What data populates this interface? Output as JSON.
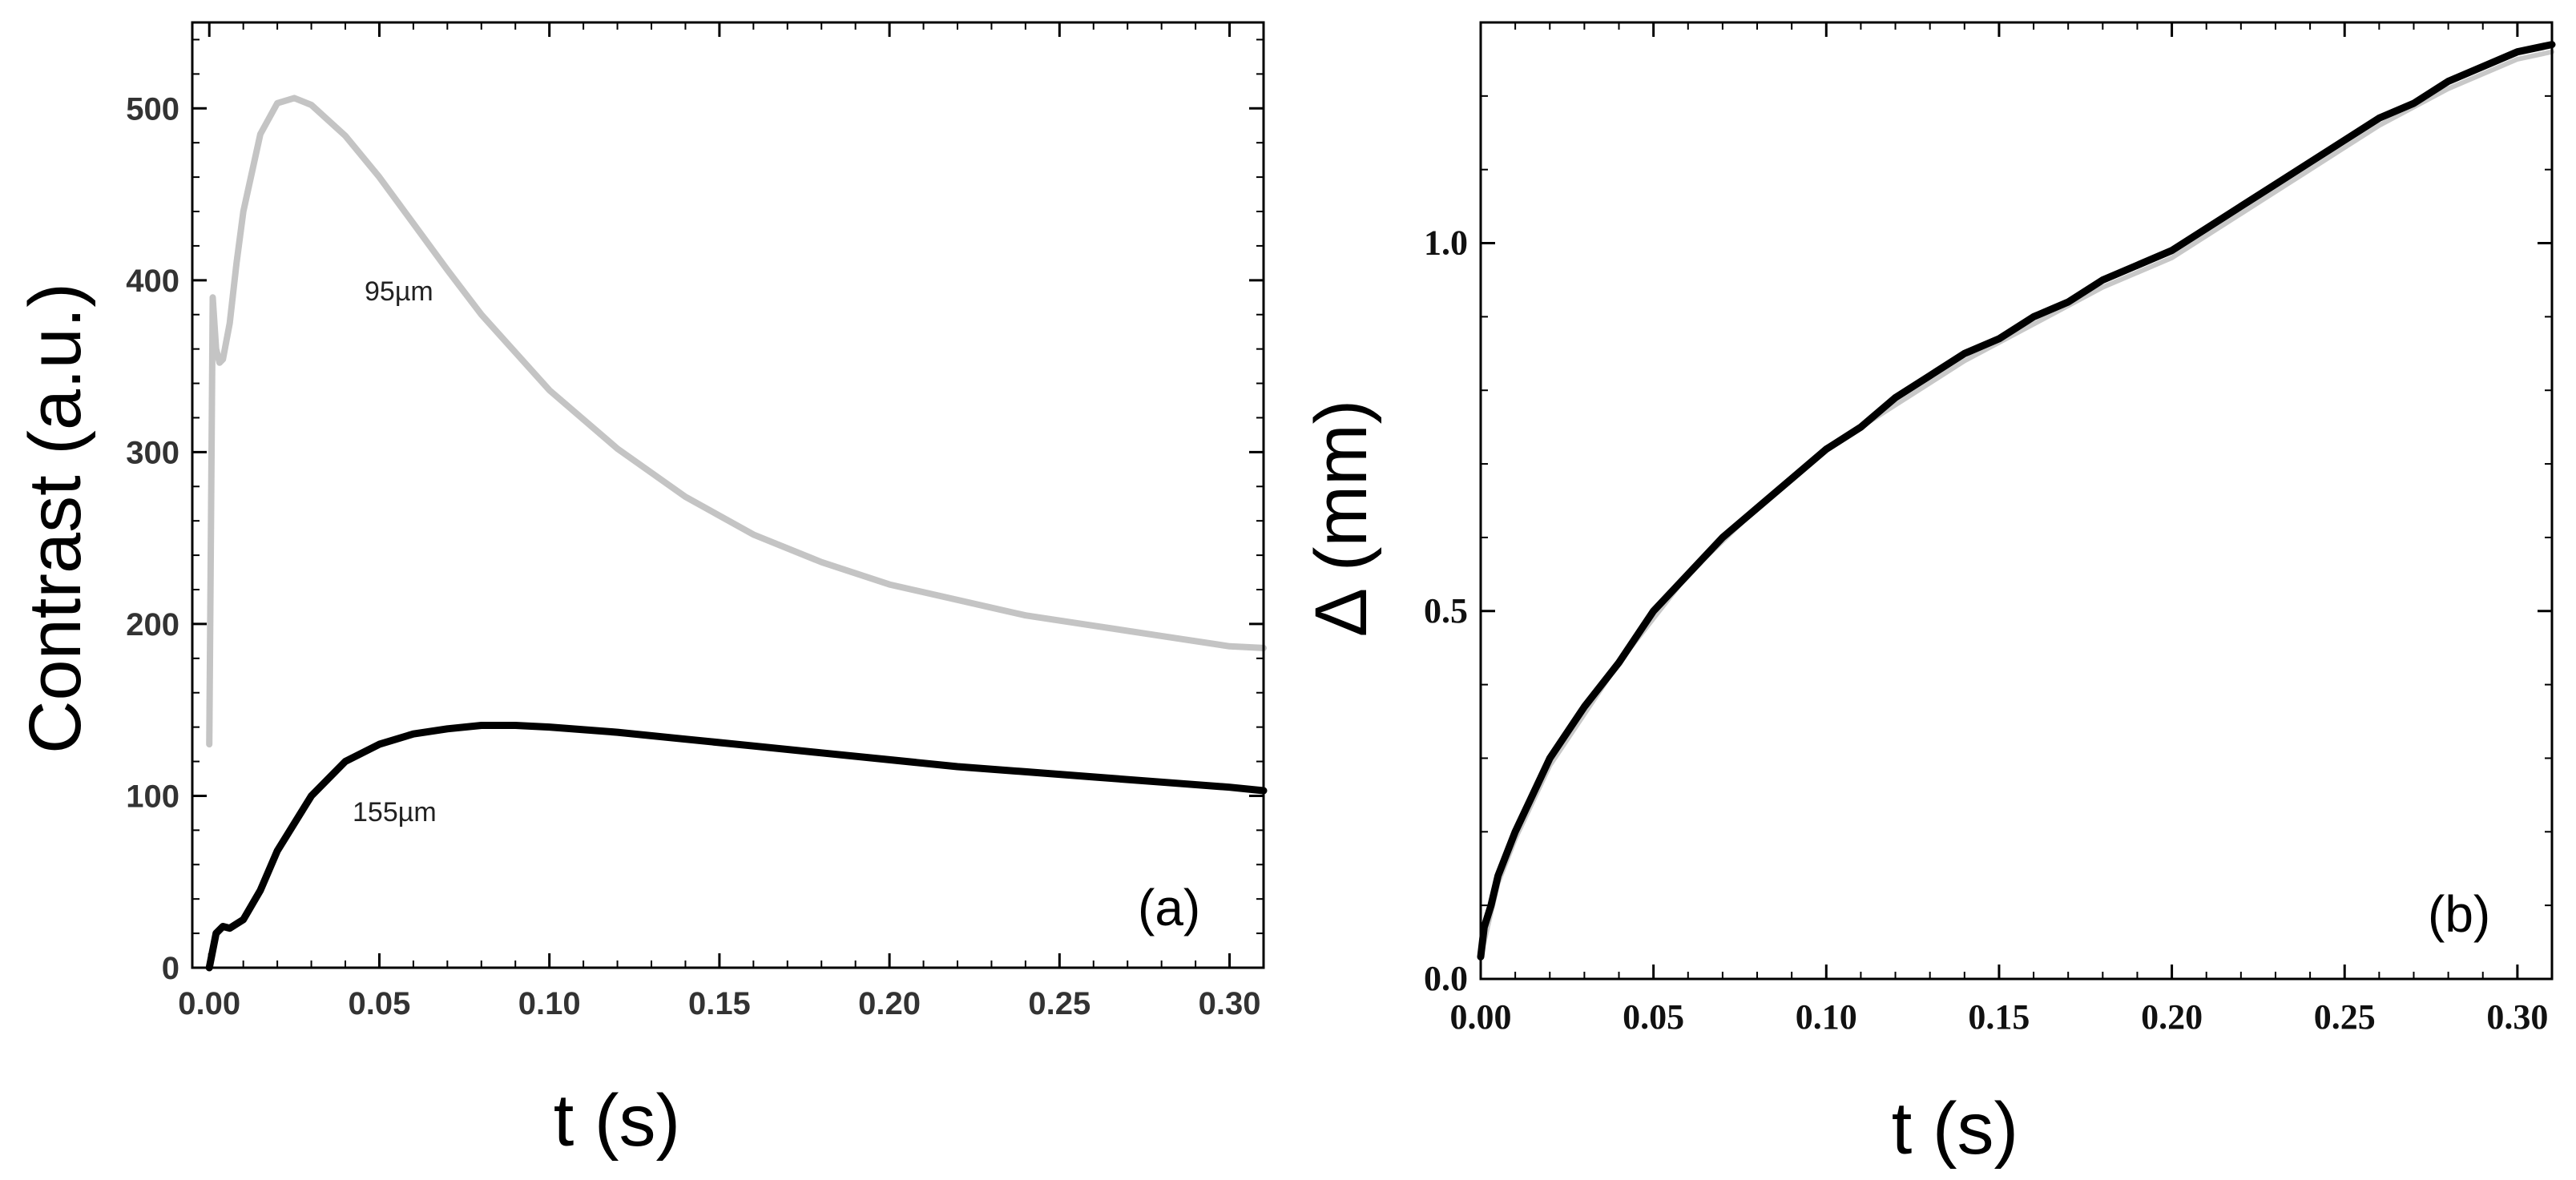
{
  "chart_data": [
    {
      "panel": "(a)",
      "type": "line",
      "xlabel": "t (s)",
      "ylabel": "Contrast (a.u.)",
      "xlim": [
        -0.005,
        0.31
      ],
      "ylim": [
        0,
        550
      ],
      "xticks": [
        "0.00",
        "0.05",
        "0.10",
        "0.15",
        "0.20",
        "0.25",
        "0.30"
      ],
      "yticks": [
        "0",
        "100",
        "200",
        "300",
        "400",
        "500"
      ],
      "xtick_values": [
        0,
        0.05,
        0.1,
        0.15,
        0.2,
        0.25,
        0.3
      ],
      "ytick_values": [
        0,
        100,
        200,
        300,
        400,
        500
      ],
      "series": [
        {
          "name": "95µm",
          "color": "#c4c4c4",
          "x": [
            0,
            0.001,
            0.002,
            0.003,
            0.004,
            0.006,
            0.008,
            0.01,
            0.015,
            0.02,
            0.025,
            0.03,
            0.04,
            0.05,
            0.06,
            0.07,
            0.08,
            0.1,
            0.12,
            0.14,
            0.16,
            0.18,
            0.2,
            0.22,
            0.24,
            0.26,
            0.28,
            0.3,
            0.31
          ],
          "y": [
            130,
            390,
            360,
            352,
            354,
            375,
            410,
            440,
            485,
            503,
            506,
            502,
            484,
            460,
            433,
            406,
            380,
            336,
            302,
            274,
            252,
            236,
            223,
            214,
            205,
            199,
            193,
            187,
            186
          ]
        },
        {
          "name": "155µm",
          "color": "#000000",
          "x": [
            0,
            0.002,
            0.004,
            0.006,
            0.01,
            0.015,
            0.02,
            0.03,
            0.04,
            0.05,
            0.06,
            0.07,
            0.08,
            0.09,
            0.1,
            0.12,
            0.14,
            0.16,
            0.18,
            0.2,
            0.22,
            0.24,
            0.26,
            0.28,
            0.3,
            0.31
          ],
          "y": [
            0,
            20,
            24,
            23,
            28,
            45,
            68,
            100,
            120,
            130,
            136,
            139,
            141,
            141,
            140,
            137,
            133,
            129,
            125,
            121,
            117,
            114,
            111,
            108,
            105,
            103
          ]
        }
      ],
      "annotations": [
        {
          "text": "95µm",
          "x": 0.06,
          "y": 390
        },
        {
          "text": "155µm",
          "x": 0.06,
          "y": 88
        }
      ]
    },
    {
      "panel": "(b)",
      "type": "line",
      "xlabel": "t (s)",
      "ylabel": "Δ (mm)",
      "xlim": [
        0,
        0.31
      ],
      "ylim": [
        0,
        1.3
      ],
      "xticks": [
        "0.00",
        "0.05",
        "0.10",
        "0.15",
        "0.20",
        "0.25",
        "0.30"
      ],
      "yticks": [
        "0.0",
        "0.5",
        "1.0"
      ],
      "xtick_values": [
        0,
        0.05,
        0.1,
        0.15,
        0.2,
        0.25,
        0.3
      ],
      "ytick_values": [
        0,
        0.5,
        1.0
      ],
      "series": [
        {
          "name": "Δ",
          "color": "#000000",
          "x": [
            0,
            0.001,
            0.003,
            0.005,
            0.01,
            0.015,
            0.02,
            0.03,
            0.04,
            0.05,
            0.06,
            0.07,
            0.08,
            0.09,
            0.1,
            0.11,
            0.12,
            0.13,
            0.14,
            0.15,
            0.16,
            0.17,
            0.18,
            0.19,
            0.2,
            0.21,
            0.22,
            0.23,
            0.24,
            0.25,
            0.26,
            0.27,
            0.28,
            0.29,
            0.3,
            0.31
          ],
          "y": [
            0.03,
            0.07,
            0.1,
            0.14,
            0.2,
            0.25,
            0.3,
            0.37,
            0.43,
            0.5,
            0.55,
            0.6,
            0.64,
            0.68,
            0.72,
            0.75,
            0.79,
            0.82,
            0.85,
            0.87,
            0.9,
            0.92,
            0.95,
            0.97,
            0.99,
            1.02,
            1.05,
            1.08,
            1.11,
            1.14,
            1.17,
            1.19,
            1.22,
            1.24,
            1.26,
            1.27
          ]
        },
        {
          "name": "Δ (grey trace)",
          "color": "#c8c8c8",
          "x": [
            0,
            0.005,
            0.01,
            0.02,
            0.04,
            0.06,
            0.08,
            0.1,
            0.12,
            0.14,
            0.16,
            0.18,
            0.2,
            0.22,
            0.24,
            0.26,
            0.28,
            0.3,
            0.31
          ],
          "y": [
            0.03,
            0.13,
            0.19,
            0.29,
            0.43,
            0.55,
            0.64,
            0.72,
            0.78,
            0.84,
            0.89,
            0.94,
            0.98,
            1.04,
            1.1,
            1.16,
            1.21,
            1.25,
            1.26
          ]
        }
      ]
    }
  ]
}
